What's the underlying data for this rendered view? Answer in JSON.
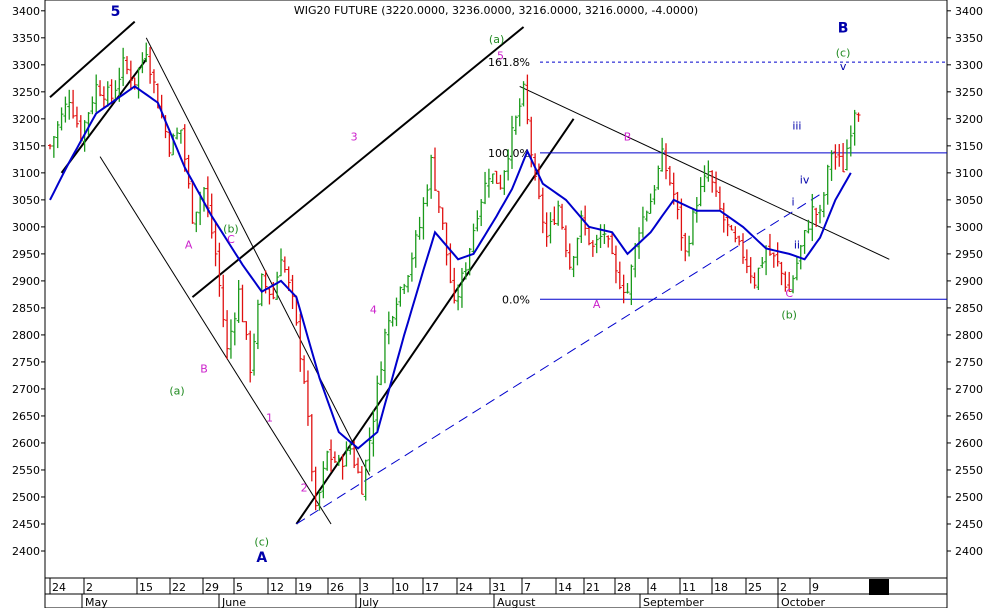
{
  "chart_data": {
    "type": "bar",
    "title": "WIG20 FUTURE (3220.0000, 3236.0000, 3216.0000, 3216.0000, -4.0000)",
    "ylim": [
      2350,
      3420
    ],
    "y_ticks": [
      2400,
      2450,
      2500,
      2550,
      2600,
      2650,
      2700,
      2750,
      2800,
      2850,
      2900,
      2950,
      3000,
      3050,
      3100,
      3150,
      3200,
      3250,
      3300,
      3350,
      3400
    ],
    "x_day_labels": [
      "24",
      "2",
      "15",
      "22",
      "29",
      "5",
      "12",
      "19",
      "26",
      "3",
      "10",
      "17",
      "24",
      "31",
      "7",
      "14",
      "21",
      "28",
      "4",
      "11",
      "18",
      "25",
      "2",
      "9"
    ],
    "x_month_labels": [
      "May",
      "June",
      "July",
      "August",
      "September",
      "October"
    ],
    "colors": {
      "up": "#1a9a1a",
      "down": "#e01010",
      "moving_average": "#0000cc",
      "fib": "#0000cc",
      "wave_blue": "#0000aa",
      "wave_magenta": "#cc22cc",
      "wave_green": "#228b22"
    },
    "price_path": [
      {
        "i": 0,
        "p": 3150
      },
      {
        "i": 5,
        "p": 3240
      },
      {
        "i": 8,
        "p": 3170
      },
      {
        "i": 12,
        "p": 3260
      },
      {
        "i": 16,
        "p": 3240
      },
      {
        "i": 19,
        "p": 3300
      },
      {
        "i": 22,
        "p": 3270
      },
      {
        "i": 25,
        "p": 3330
      },
      {
        "i": 28,
        "p": 3230
      },
      {
        "i": 31,
        "p": 3150
      },
      {
        "i": 34,
        "p": 3180
      },
      {
        "i": 37,
        "p": 3020
      },
      {
        "i": 40,
        "p": 3070
      },
      {
        "i": 43,
        "p": 2950
      },
      {
        "i": 46,
        "p": 2770
      },
      {
        "i": 49,
        "p": 2880
      },
      {
        "i": 52,
        "p": 2740
      },
      {
        "i": 55,
        "p": 2900
      },
      {
        "i": 58,
        "p": 2870
      },
      {
        "i": 60,
        "p": 2950
      },
      {
        "i": 63,
        "p": 2860
      },
      {
        "i": 66,
        "p": 2720
      },
      {
        "i": 69,
        "p": 2470
      },
      {
        "i": 72,
        "p": 2580
      },
      {
        "i": 75,
        "p": 2560
      },
      {
        "i": 78,
        "p": 2590
      },
      {
        "i": 81,
        "p": 2520
      },
      {
        "i": 84,
        "p": 2650
      },
      {
        "i": 87,
        "p": 2800
      },
      {
        "i": 90,
        "p": 2870
      },
      {
        "i": 93,
        "p": 2920
      },
      {
        "i": 96,
        "p": 3000
      },
      {
        "i": 99,
        "p": 3120
      },
      {
        "i": 102,
        "p": 3000
      },
      {
        "i": 105,
        "p": 2850
      },
      {
        "i": 108,
        "p": 2930
      },
      {
        "i": 111,
        "p": 3030
      },
      {
        "i": 114,
        "p": 3100
      },
      {
        "i": 117,
        "p": 3080
      },
      {
        "i": 120,
        "p": 3170
      },
      {
        "i": 123,
        "p": 3250
      },
      {
        "i": 126,
        "p": 3080
      },
      {
        "i": 129,
        "p": 2980
      },
      {
        "i": 132,
        "p": 3040
      },
      {
        "i": 135,
        "p": 2930
      },
      {
        "i": 138,
        "p": 3010
      },
      {
        "i": 141,
        "p": 2960
      },
      {
        "i": 144,
        "p": 2990
      },
      {
        "i": 147,
        "p": 2910
      },
      {
        "i": 150,
        "p": 2880
      },
      {
        "i": 153,
        "p": 3000
      },
      {
        "i": 156,
        "p": 3050
      },
      {
        "i": 159,
        "p": 3130
      },
      {
        "i": 162,
        "p": 3060
      },
      {
        "i": 165,
        "p": 2950
      },
      {
        "i": 168,
        "p": 3050
      },
      {
        "i": 171,
        "p": 3100
      },
      {
        "i": 174,
        "p": 3030
      },
      {
        "i": 177,
        "p": 2980
      },
      {
        "i": 180,
        "p": 2950
      },
      {
        "i": 183,
        "p": 2900
      },
      {
        "i": 186,
        "p": 2960
      },
      {
        "i": 189,
        "p": 2930
      },
      {
        "i": 192,
        "p": 2880
      },
      {
        "i": 195,
        "p": 2960
      },
      {
        "i": 198,
        "p": 3030
      },
      {
        "i": 200,
        "p": 3020
      },
      {
        "i": 203,
        "p": 3140
      },
      {
        "i": 206,
        "p": 3110
      },
      {
        "i": 209,
        "p": 3220
      }
    ],
    "moving_average_path": [
      {
        "i": 0,
        "p": 3050
      },
      {
        "i": 5,
        "p": 3120
      },
      {
        "i": 12,
        "p": 3210
      },
      {
        "i": 22,
        "p": 3260
      },
      {
        "i": 28,
        "p": 3230
      },
      {
        "i": 35,
        "p": 3110
      },
      {
        "i": 42,
        "p": 3020
      },
      {
        "i": 50,
        "p": 2930
      },
      {
        "i": 55,
        "p": 2880
      },
      {
        "i": 60,
        "p": 2900
      },
      {
        "i": 64,
        "p": 2870
      },
      {
        "i": 70,
        "p": 2720
      },
      {
        "i": 75,
        "p": 2620
      },
      {
        "i": 80,
        "p": 2590
      },
      {
        "i": 85,
        "p": 2620
      },
      {
        "i": 92,
        "p": 2800
      },
      {
        "i": 97,
        "p": 2920
      },
      {
        "i": 100,
        "p": 2990
      },
      {
        "i": 106,
        "p": 2940
      },
      {
        "i": 110,
        "p": 2950
      },
      {
        "i": 116,
        "p": 3020
      },
      {
        "i": 120,
        "p": 3070
      },
      {
        "i": 124,
        "p": 3140
      },
      {
        "i": 128,
        "p": 3080
      },
      {
        "i": 134,
        "p": 3050
      },
      {
        "i": 140,
        "p": 3000
      },
      {
        "i": 146,
        "p": 2990
      },
      {
        "i": 150,
        "p": 2950
      },
      {
        "i": 156,
        "p": 2990
      },
      {
        "i": 162,
        "p": 3050
      },
      {
        "i": 168,
        "p": 3030
      },
      {
        "i": 174,
        "p": 3030
      },
      {
        "i": 180,
        "p": 3000
      },
      {
        "i": 186,
        "p": 2960
      },
      {
        "i": 192,
        "p": 2950
      },
      {
        "i": 196,
        "p": 2940
      },
      {
        "i": 200,
        "p": 2980
      },
      {
        "i": 204,
        "p": 3050
      },
      {
        "i": 208,
        "p": 3100
      }
    ],
    "bar_count": 211,
    "fib_levels": [
      {
        "label": "161.8%",
        "value": 3305,
        "dashed": true
      },
      {
        "label": "100.0%",
        "value": 3137,
        "dashed": false
      },
      {
        "label": "0.0%",
        "value": 2866,
        "dashed": false
      }
    ],
    "trend_lines": [
      {
        "from": [
          0,
          3240
        ],
        "to": [
          22,
          3380
        ],
        "color": "#000",
        "width": 2
      },
      {
        "from": [
          3,
          3100
        ],
        "to": [
          25,
          3310
        ],
        "color": "#000",
        "width": 2
      },
      {
        "from": [
          13,
          3130
        ],
        "to": [
          73,
          2450
        ],
        "color": "#000",
        "width": 1
      },
      {
        "from": [
          25,
          3350
        ],
        "to": [
          83,
          2540
        ],
        "color": "#000",
        "width": 1
      },
      {
        "from": [
          37,
          2870
        ],
        "to": [
          123,
          3370
        ],
        "color": "#000",
        "width": 2
      },
      {
        "from": [
          64,
          2450
        ],
        "to": [
          136,
          3200
        ],
        "color": "#000",
        "width": 2
      },
      {
        "from": [
          122,
          3260
        ],
        "to": [
          218,
          2940
        ],
        "color": "#000",
        "width": 1
      },
      {
        "from": [
          64,
          2450
        ],
        "to": [
          200,
          3060
        ],
        "color": "#0000cc",
        "width": 1,
        "dashed": true
      }
    ],
    "wave_labels": [
      {
        "text": "5",
        "i": 17,
        "p": 3390,
        "color": "blue",
        "bold": true,
        "size": 14
      },
      {
        "text": "A",
        "i": 36,
        "p": 2960,
        "color": "magenta"
      },
      {
        "text": "B",
        "i": 40,
        "p": 2730,
        "color": "magenta"
      },
      {
        "text": "(a)",
        "i": 33,
        "p": 2690,
        "color": "green"
      },
      {
        "text": "(b)",
        "i": 47,
        "p": 2990,
        "color": "green"
      },
      {
        "text": "C",
        "i": 47,
        "p": 2970,
        "color": "magenta"
      },
      {
        "text": "1",
        "i": 57,
        "p": 2640,
        "color": "magenta"
      },
      {
        "text": "2",
        "i": 66,
        "p": 2510,
        "color": "magenta"
      },
      {
        "text": "(c)",
        "i": 55,
        "p": 2410,
        "color": "green"
      },
      {
        "text": "A",
        "i": 55,
        "p": 2380,
        "color": "blue",
        "bold": true,
        "size": 14
      },
      {
        "text": "3",
        "i": 79,
        "p": 3160,
        "color": "magenta"
      },
      {
        "text": "4",
        "i": 84,
        "p": 2840,
        "color": "magenta"
      },
      {
        "text": "(a)",
        "i": 116,
        "p": 3340,
        "color": "green"
      },
      {
        "text": "5",
        "i": 117,
        "p": 3310,
        "color": "magenta"
      },
      {
        "text": "A",
        "i": 142,
        "p": 2850,
        "color": "magenta"
      },
      {
        "text": "B",
        "i": 150,
        "p": 3160,
        "color": "magenta"
      },
      {
        "text": "C",
        "i": 192,
        "p": 2870,
        "color": "magenta"
      },
      {
        "text": "(b)",
        "i": 192,
        "p": 2830,
        "color": "green"
      },
      {
        "text": "i",
        "i": 193,
        "p": 3040,
        "color": "blue"
      },
      {
        "text": "ii",
        "i": 194,
        "p": 2960,
        "color": "blue"
      },
      {
        "text": "iii",
        "i": 194,
        "p": 3180,
        "color": "blue"
      },
      {
        "text": "iv",
        "i": 196,
        "p": 3080,
        "color": "blue"
      },
      {
        "text": "v",
        "i": 206,
        "p": 3290,
        "color": "blue"
      },
      {
        "text": "(c)",
        "i": 206,
        "p": 3315,
        "color": "green"
      },
      {
        "text": "B",
        "i": 206,
        "p": 3360,
        "color": "blue",
        "bold": true,
        "size": 14
      }
    ]
  }
}
